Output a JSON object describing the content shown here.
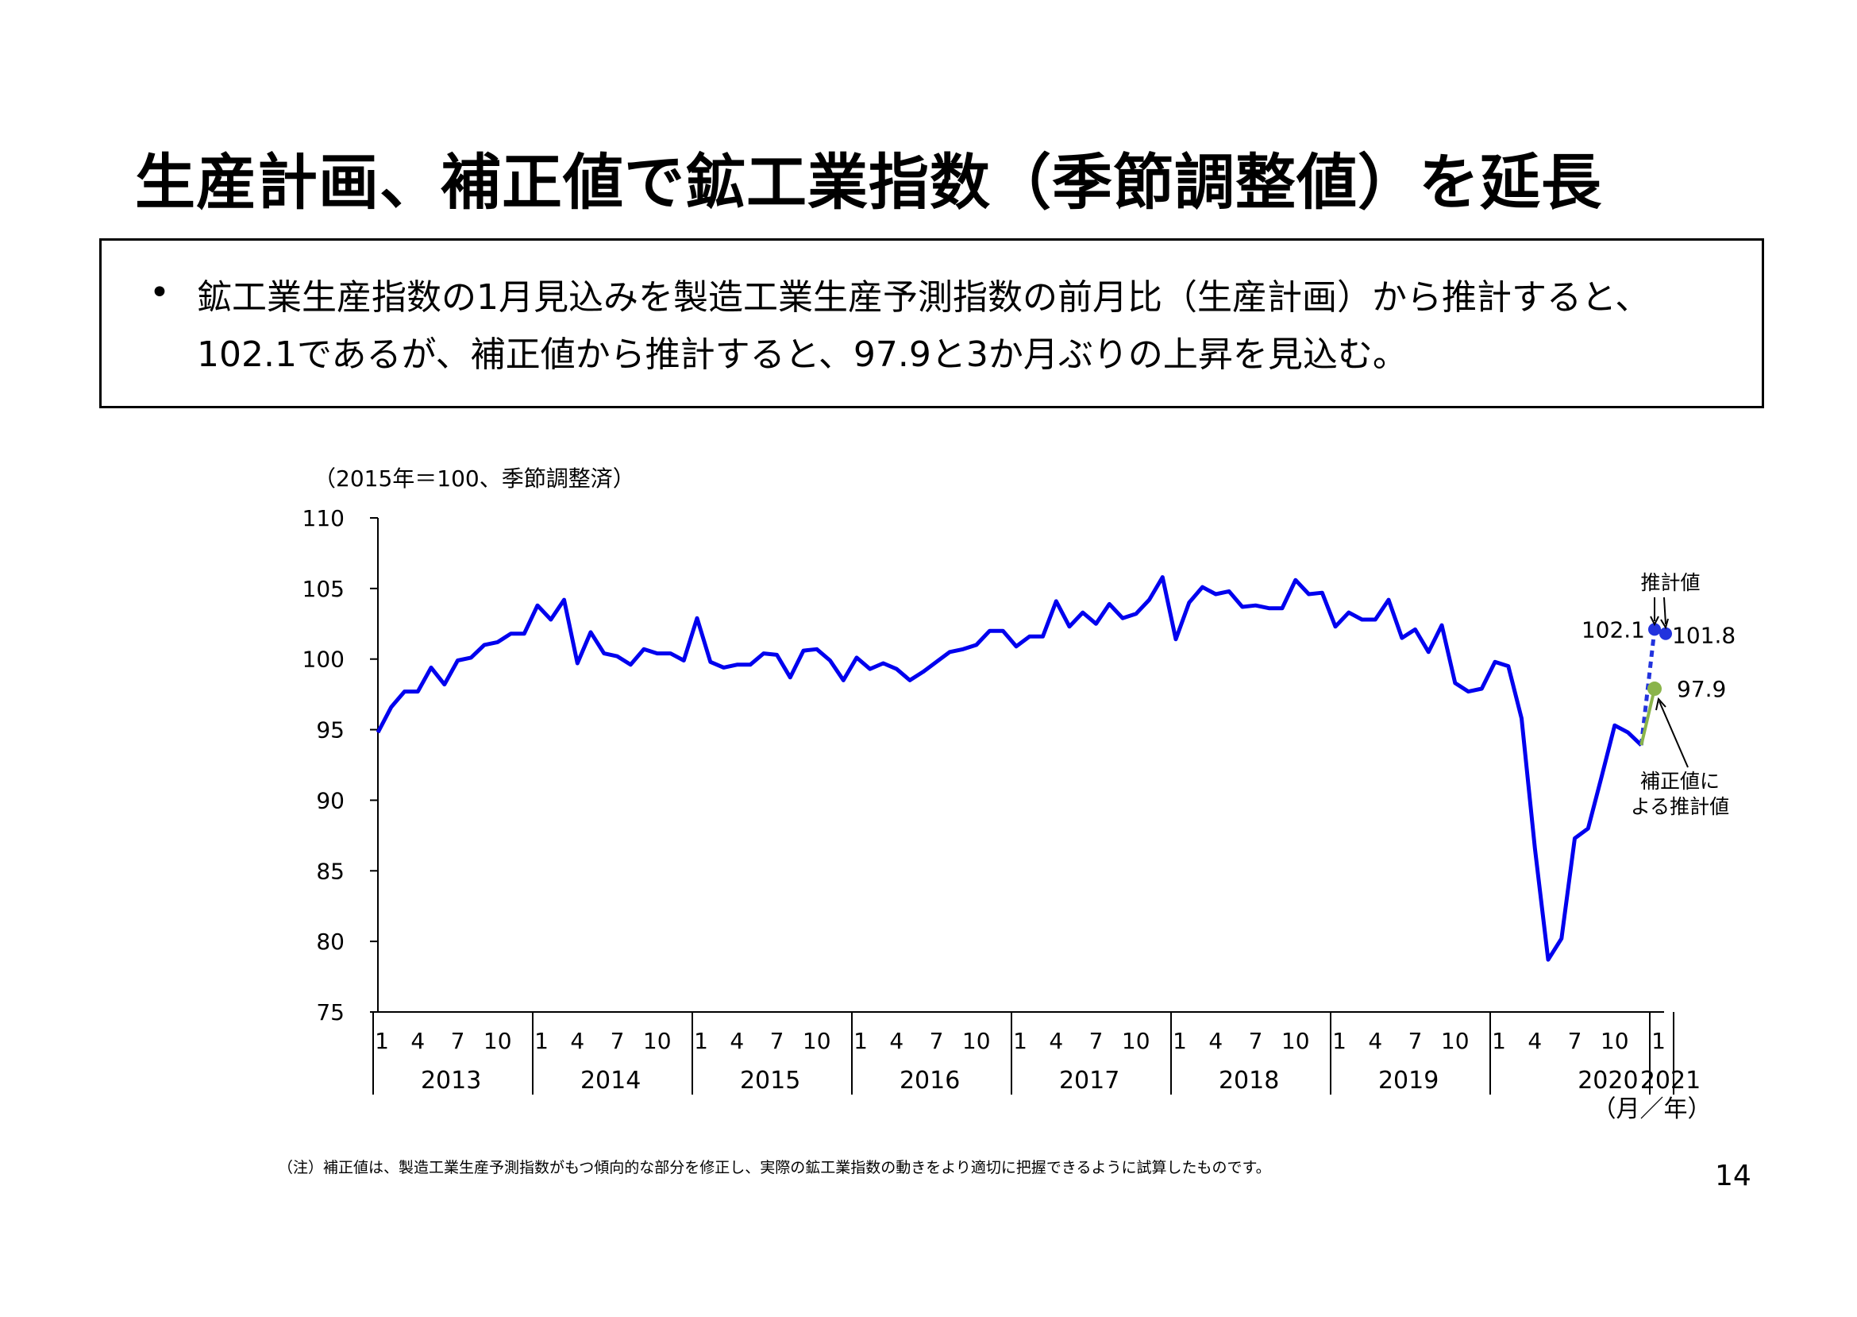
{
  "title": "生産計画、補正値で鉱工業指数（季節調整値）を延長",
  "summary": {
    "bullet": "•",
    "text": "鉱工業生産指数の1月見込みを製造工業生産予測指数の前月比（生産計画）から推計すると、102.1であるが、補正値から推計すると、97.9と3か月ぶりの上昇を見込む。"
  },
  "chart_data": {
    "type": "line",
    "unit_note": "（2015年＝100、季節調整済）",
    "ylim": [
      75,
      110
    ],
    "yticks": [
      "110",
      "105",
      "100",
      "95",
      "90",
      "85",
      "80",
      "75"
    ],
    "month_ticks": [
      "1",
      "4",
      "7",
      "10",
      "1",
      "4",
      "7",
      "10",
      "1",
      "4",
      "7",
      "10",
      "1",
      "4",
      "7",
      "10",
      "1",
      "4",
      "7",
      "10",
      "1",
      "4",
      "7",
      "10",
      "1",
      "4",
      "7",
      "10",
      "1",
      "4",
      "7",
      "10",
      "1"
    ],
    "year_labels": [
      "2013",
      "2014",
      "2015",
      "2016",
      "2017",
      "2018",
      "2019",
      "2020",
      "2021"
    ],
    "xlabel": "（月／年）",
    "series": [
      {
        "values": [
          94.8,
          96.6,
          97.7,
          97.7,
          99.4,
          98.2,
          99.9,
          100.1,
          101.0,
          101.2,
          101.8,
          101.8,
          103.8,
          102.8,
          104.2,
          99.7,
          101.9,
          100.4,
          100.2,
          99.6,
          100.7,
          100.4,
          100.4,
          99.9,
          102.9,
          99.8,
          99.4,
          99.6,
          99.6,
          100.4,
          100.3,
          98.7,
          100.6,
          100.7,
          99.9,
          98.5,
          100.1,
          99.3,
          99.7,
          99.3,
          98.5,
          99.1,
          99.8,
          100.5,
          100.7,
          101.0,
          102.0,
          102.0,
          100.9,
          101.6,
          101.6,
          104.1,
          102.3,
          103.3,
          102.5,
          103.9,
          102.9,
          103.2,
          104.2,
          105.8,
          101.4,
          104.0,
          105.1,
          104.6,
          104.8,
          103.7,
          103.8,
          103.6,
          103.6,
          105.6,
          104.6,
          104.7,
          102.3,
          103.3,
          102.8,
          102.8,
          104.2,
          101.5,
          102.1,
          100.5,
          102.4,
          98.3,
          97.7,
          97.9,
          99.8,
          99.5,
          95.8,
          86.6,
          78.7,
          80.2,
          87.3,
          88.0,
          91.6,
          95.3,
          94.8,
          93.9
        ]
      }
    ],
    "forecast_plan": {
      "label": "102.1",
      "value": 102.1
    },
    "forecast_plan_next": {
      "label": "101.8",
      "value": 101.8
    },
    "forecast_corrected": {
      "label": "97.9",
      "value": 97.9
    },
    "annotation_plan": "推計値",
    "annotation_corrected_line1": "補正値に",
    "annotation_corrected_line2": "よる推計値",
    "colors": {
      "main": "#0000ee",
      "plan": "#2233dd",
      "corrected": "#8ab44a"
    }
  },
  "footnote": "（注）補正値は、製造工業生産予測指数がもつ傾向的な部分を修正し、実際の鉱工業指数の動きをより適切に把握できるように試算したものです。",
  "page_number": "14"
}
